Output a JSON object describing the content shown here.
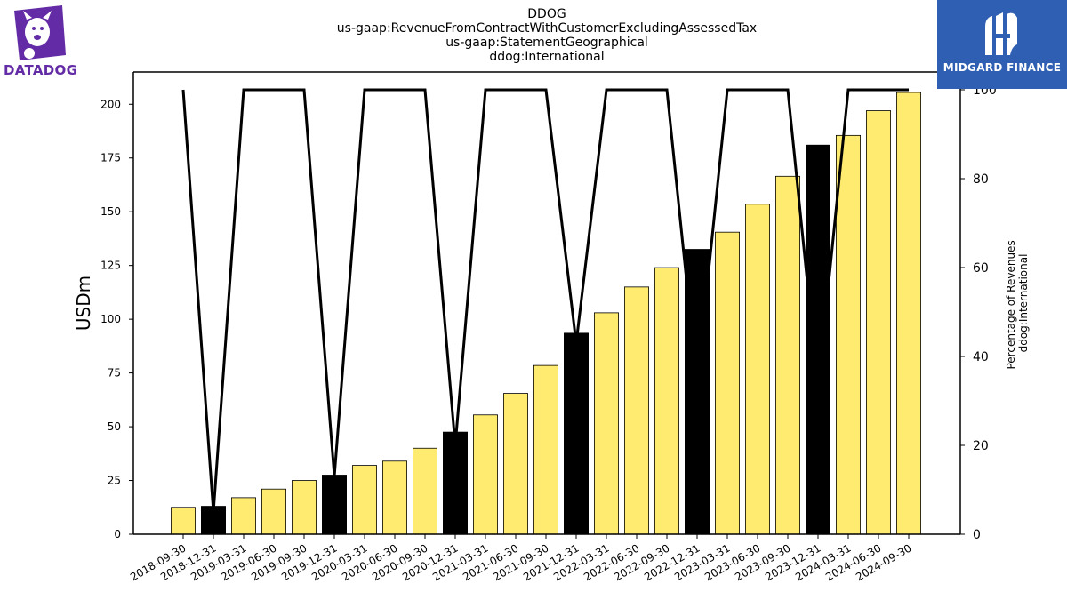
{
  "logos": {
    "left_text": "DATADOG",
    "left_color": "#632ca6",
    "right_text": "MIDGARD FINANCE",
    "right_color": "#2f5fb3"
  },
  "chart_data": {
    "type": "bar",
    "title_lines": [
      "DDOG",
      "us-gaap:RevenueFromContractWithCustomerExcludingAssessedTax",
      "us-gaap:StatementGeographical",
      "ddog:International"
    ],
    "ylabel": "USDm",
    "ylabel_right": [
      "Percentage of Revenues",
      "ddog:International"
    ],
    "ylim": [
      0,
      215
    ],
    "yticks": [
      0,
      25,
      50,
      75,
      100,
      125,
      150,
      175,
      200
    ],
    "y2lim": [
      0,
      104
    ],
    "y2ticks": [
      0,
      20,
      40,
      60,
      80,
      100
    ],
    "categories": [
      "2018-09-30",
      "2018-12-31",
      "2019-03-31",
      "2019-06-30",
      "2019-09-30",
      "2019-12-31",
      "2020-03-31",
      "2020-06-30",
      "2020-09-30",
      "2020-12-31",
      "2021-03-31",
      "2021-06-30",
      "2021-09-30",
      "2021-12-31",
      "2022-03-31",
      "2022-06-30",
      "2022-09-30",
      "2022-12-31",
      "2023-03-31",
      "2023-06-30",
      "2023-09-30",
      "2023-12-31",
      "2024-03-31",
      "2024-06-30",
      "2024-09-30"
    ],
    "values": [
      12.5,
      13,
      17,
      21,
      25,
      27.5,
      32,
      34,
      40,
      47.5,
      55.5,
      65.5,
      78.5,
      93.5,
      103,
      115,
      124,
      132.5,
      140.5,
      153.5,
      166.5,
      181,
      185.5,
      197,
      205.5
    ],
    "bar_colors": [
      "#ffeb70",
      "#000000",
      "#ffeb70",
      "#ffeb70",
      "#ffeb70",
      "#000000",
      "#ffeb70",
      "#ffeb70",
      "#ffeb70",
      "#000000",
      "#ffeb70",
      "#ffeb70",
      "#ffeb70",
      "#000000",
      "#ffeb70",
      "#ffeb70",
      "#ffeb70",
      "#000000",
      "#ffeb70",
      "#ffeb70",
      "#ffeb70",
      "#000000",
      "#ffeb70",
      "#ffeb70",
      "#ffeb70"
    ],
    "line_series": {
      "axis": "right",
      "values": [
        100,
        5,
        100,
        100,
        100,
        13,
        100,
        100,
        100,
        20,
        100,
        100,
        100,
        43,
        100,
        100,
        100,
        34,
        100,
        100,
        100,
        33,
        100,
        100,
        100
      ],
      "color": "#000000"
    },
    "grid": false,
    "legend": "none"
  }
}
